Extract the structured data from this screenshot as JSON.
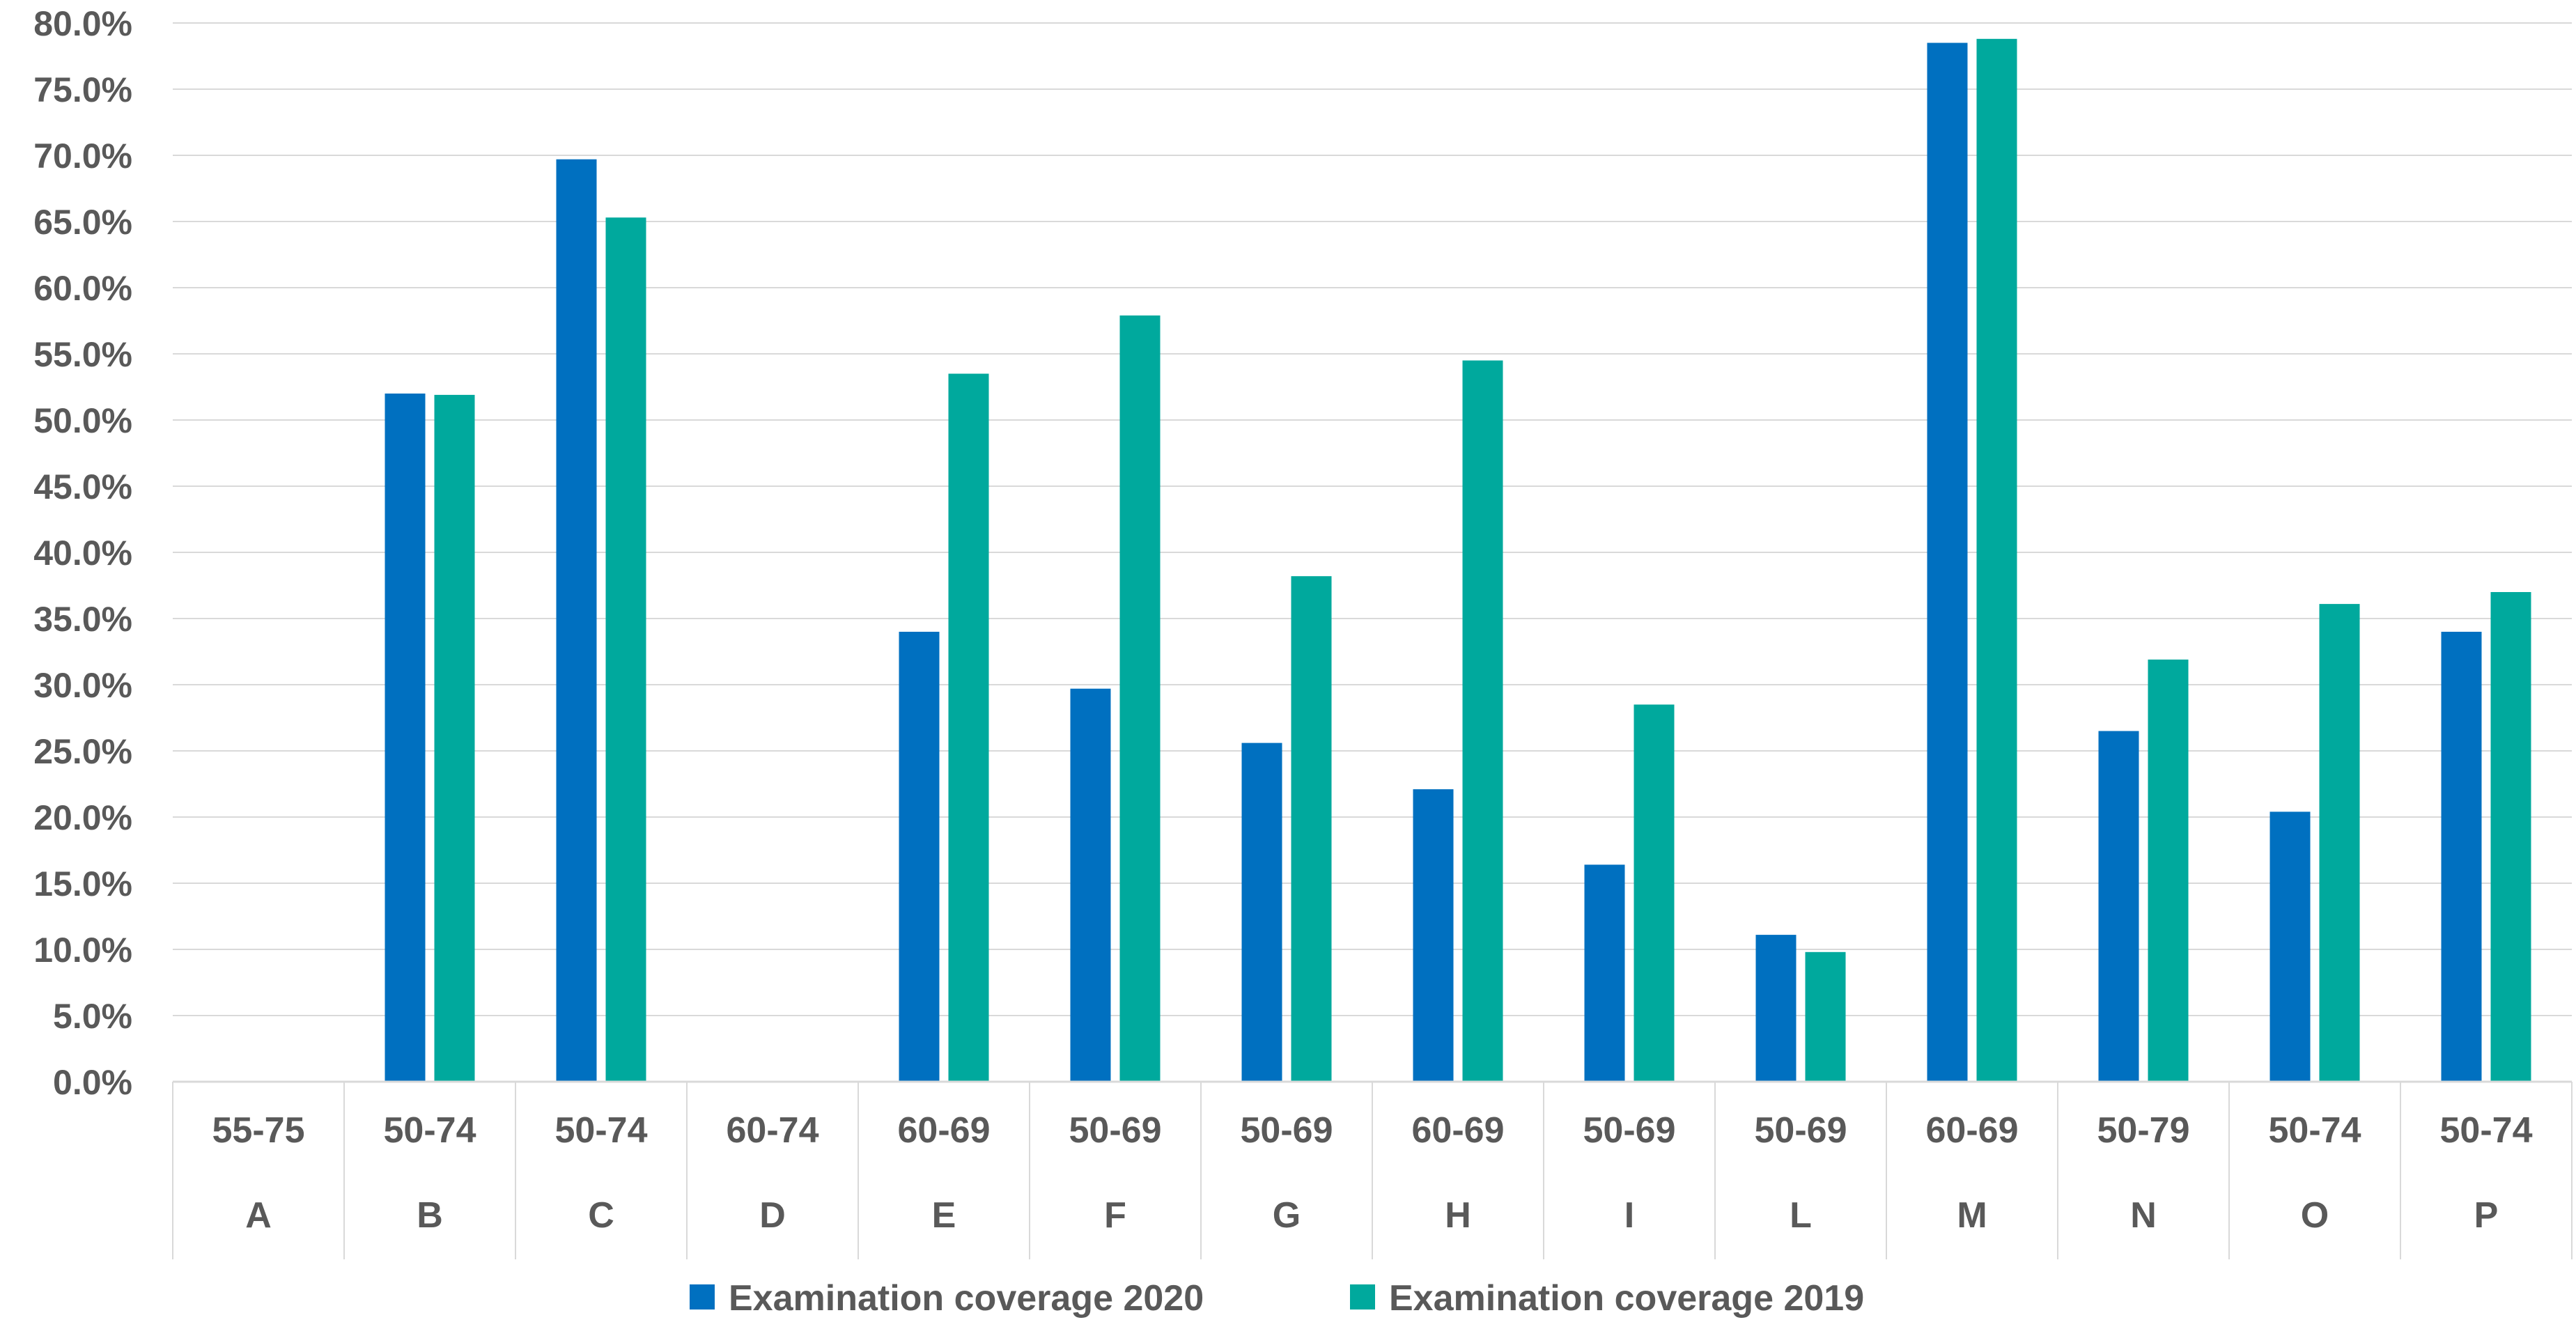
{
  "chart_data": {
    "type": "bar",
    "title": "",
    "xlabel": "",
    "ylabel": "",
    "ylim": [
      0,
      80
    ],
    "y_tick_step": 5,
    "y_tick_labels": [
      "0.0%",
      "5.0%",
      "10.0%",
      "15.0%",
      "20.0%",
      "25.0%",
      "30.0%",
      "35.0%",
      "40.0%",
      "45.0%",
      "50.0%",
      "55.0%",
      "60.0%",
      "65.0%",
      "70.0%",
      "75.0%",
      "80.0%"
    ],
    "grid": "horizontal",
    "legend_position": "bottom",
    "categories": [
      "A",
      "B",
      "C",
      "D",
      "E",
      "F",
      "G",
      "H",
      "I",
      "L",
      "M",
      "N",
      "O",
      "P"
    ],
    "age_ranges": [
      "55-75",
      "50-74",
      "50-74",
      "60-74",
      "60-69",
      "50-69",
      "50-69",
      "60-69",
      "50-69",
      "50-69",
      "60-69",
      "50-79",
      "50-74",
      "50-74"
    ],
    "series": [
      {
        "name": "Examination coverage 2020",
        "color": "#0070C0",
        "values": [
          null,
          52.0,
          69.7,
          null,
          34.0,
          29.7,
          25.6,
          22.1,
          16.4,
          11.1,
          78.5,
          26.5,
          20.4,
          34.0
        ]
      },
      {
        "name": "Examination coverage 2019",
        "color": "#00A99D",
        "values": [
          null,
          51.9,
          65.3,
          null,
          53.5,
          57.9,
          38.2,
          54.5,
          28.5,
          9.8,
          78.8,
          31.9,
          36.1,
          37.0
        ]
      }
    ]
  }
}
